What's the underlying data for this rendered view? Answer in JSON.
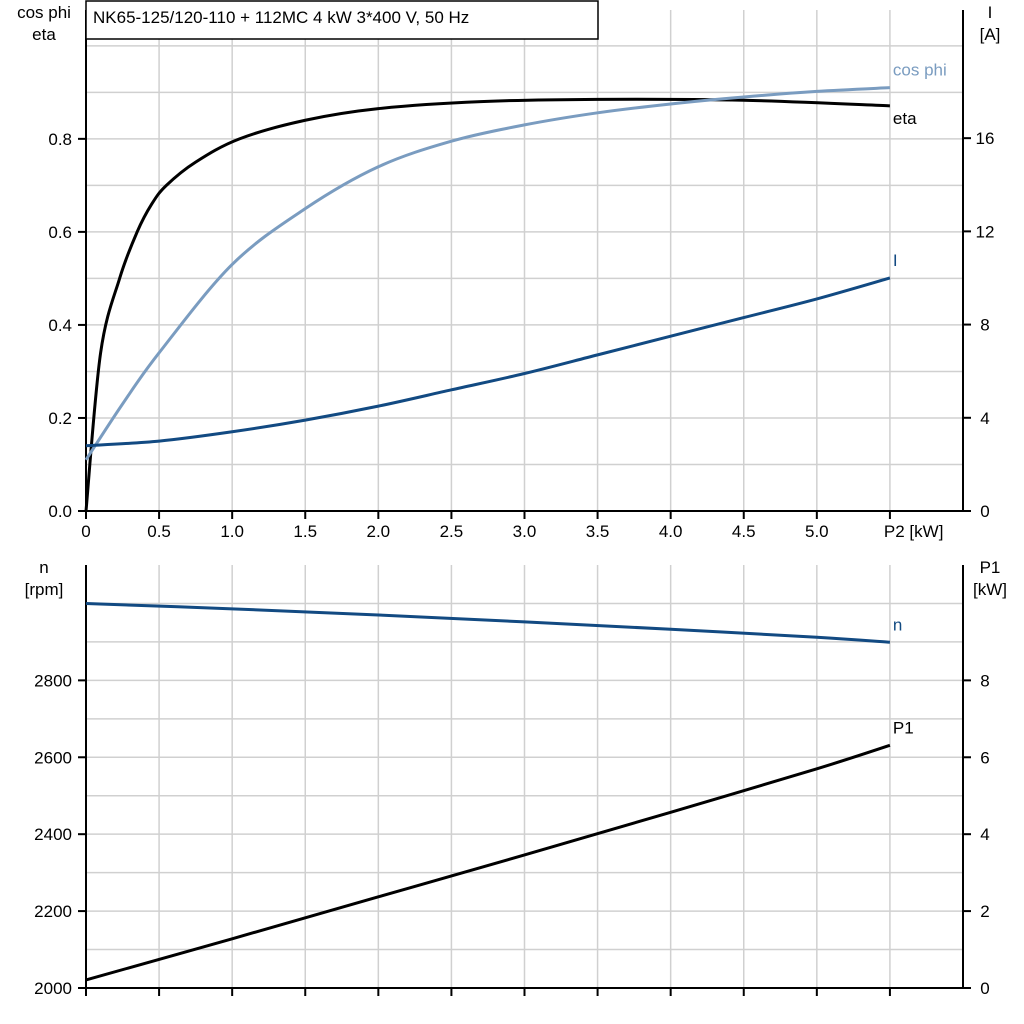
{
  "chart_data": [
    {
      "type": "line",
      "title": "NK65-125/120-110 + 112MC   4 kW   3*400 V, 50 Hz",
      "xlabel": "P2 [kW]",
      "ylabel_left": [
        "cos phi",
        "eta"
      ],
      "ylabel_right": [
        "I",
        "[A]"
      ],
      "xlim": [
        0,
        6
      ],
      "ylim_left": [
        0,
        1.077
      ],
      "ylim_right": [
        0,
        21.5
      ],
      "x_ticks": [
        "0",
        "0.5",
        "1.0",
        "1.5",
        "2.0",
        "2.5",
        "3.0",
        "3.5",
        "4.0",
        "4.5",
        "5.0"
      ],
      "y_ticks_left": [
        "0.0",
        "0.2",
        "0.4",
        "0.6",
        "0.8"
      ],
      "y_ticks_right": [
        "0",
        "4",
        "8",
        "12",
        "16"
      ],
      "grid": true,
      "colors": {
        "eta": "#000000",
        "cos_phi": "#7a9cc0",
        "I": "#124a82"
      },
      "series": [
        {
          "name": "eta",
          "axis": "left",
          "x": [
            0,
            0.1,
            0.23,
            0.35,
            0.45,
            0.55,
            0.75,
            1.05,
            1.5,
            2.0,
            2.7,
            3.5,
            4.5,
            5.5
          ],
          "values": [
            0,
            0.34,
            0.5,
            0.6,
            0.66,
            0.7,
            0.75,
            0.8,
            0.84,
            0.865,
            0.88,
            0.885,
            0.883,
            0.871
          ]
        },
        {
          "name": "cos phi",
          "axis": "left",
          "x": [
            0,
            0.25,
            0.5,
            1.0,
            1.5,
            2.0,
            2.5,
            3.0,
            3.5,
            4.0,
            4.5,
            5.0,
            5.5
          ],
          "values": [
            0.11,
            0.23,
            0.34,
            0.53,
            0.65,
            0.74,
            0.795,
            0.83,
            0.856,
            0.875,
            0.89,
            0.902,
            0.91
          ]
        },
        {
          "name": "I",
          "axis": "right",
          "x": [
            0,
            0.5,
            1.0,
            1.5,
            2.0,
            2.5,
            3.0,
            3.5,
            4.0,
            4.5,
            5.0,
            5.5
          ],
          "values": [
            2.8,
            3.0,
            3.4,
            3.9,
            4.5,
            5.2,
            5.9,
            6.7,
            7.5,
            8.3,
            9.1,
            10.0
          ]
        }
      ]
    },
    {
      "type": "line",
      "ylabel_left": [
        "n",
        "[rpm]"
      ],
      "ylabel_right": [
        "P1",
        "[kW]"
      ],
      "xlim": [
        0,
        6
      ],
      "ylim_left": [
        2000,
        3100
      ],
      "ylim_right": [
        0,
        11
      ],
      "y_ticks_left": [
        "2000",
        "2200",
        "2400",
        "2600",
        "2800"
      ],
      "y_ticks_right": [
        "0",
        "2",
        "4",
        "6",
        "8"
      ],
      "grid": true,
      "colors": {
        "n": "#124a82",
        "P1": "#000000"
      },
      "series": [
        {
          "name": "n",
          "axis": "left",
          "x": [
            0,
            1,
            2,
            3,
            4,
            5,
            5.5
          ],
          "values": [
            3000,
            2986,
            2970,
            2952,
            2933,
            2912,
            2899
          ]
        },
        {
          "name": "P1",
          "axis": "right",
          "x": [
            0,
            1,
            2,
            3,
            4,
            5,
            5.5
          ],
          "values": [
            0.21,
            1.28,
            2.37,
            3.46,
            4.57,
            5.7,
            6.31
          ]
        }
      ]
    }
  ]
}
